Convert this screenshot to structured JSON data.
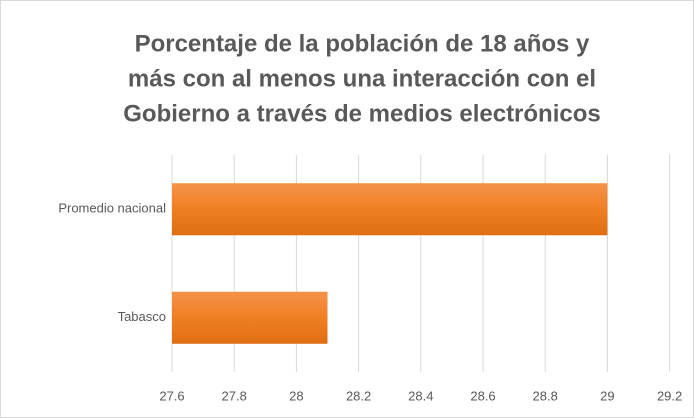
{
  "chart_data": {
    "type": "bar",
    "orientation": "horizontal",
    "title": [
      "Porcentaje de la población de 18 años y",
      "más con al menos una interacción con el",
      "Gobierno a través de medios electrónicos"
    ],
    "categories": [
      "Promedio nacional",
      "Tabasco"
    ],
    "values": [
      29,
      28.1
    ],
    "color": "#f07f23",
    "xlim": [
      27.6,
      29.2
    ],
    "xticks": [
      27.6,
      27.8,
      28,
      28.2,
      28.4,
      28.6,
      28.8,
      29,
      29.2
    ],
    "grid": true
  }
}
